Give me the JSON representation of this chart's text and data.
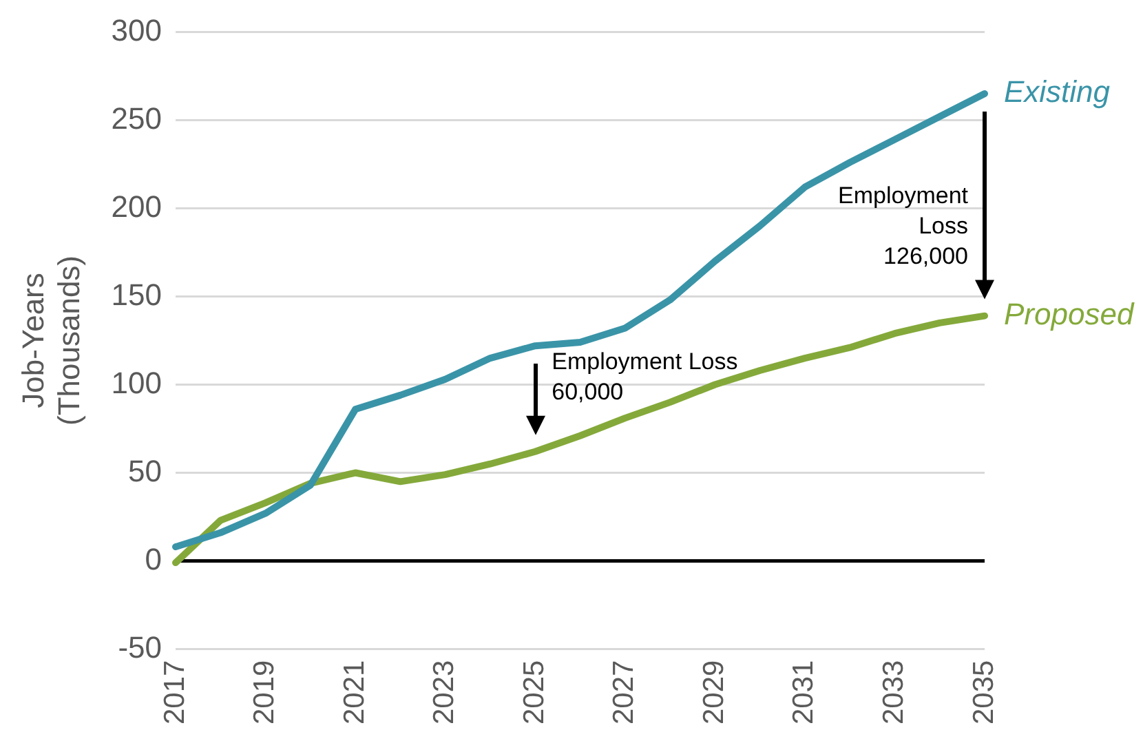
{
  "chart_data": {
    "type": "line",
    "ylabel": "Job-Years\n(Thousands)",
    "categories": [
      "2017",
      null,
      "2019",
      null,
      "2021",
      null,
      "2023",
      null,
      "2025",
      null,
      "2027",
      null,
      "2029",
      null,
      "2031",
      null,
      "2033",
      null,
      "2035"
    ],
    "series": [
      {
        "name": "Existing",
        "color": "#3a94a8",
        "values": [
          8,
          16,
          27,
          43,
          86,
          94,
          103,
          115,
          122,
          124,
          132,
          148,
          170,
          190,
          212,
          226,
          239,
          252,
          265
        ]
      },
      {
        "name": "Proposed",
        "color": "#84a93a",
        "values": [
          -1,
          23,
          33,
          44,
          50,
          45,
          49,
          55,
          62,
          71,
          81,
          90,
          100,
          108,
          115,
          121,
          129,
          135,
          139
        ]
      }
    ],
    "ylim": [
      -50,
      300
    ],
    "yticks": [
      -50,
      0,
      50,
      100,
      150,
      200,
      250,
      300
    ],
    "grid": "y",
    "legend": false,
    "marker": "none",
    "line_style": "solid",
    "ref_lines": [
      {
        "axis": "y",
        "value": 0,
        "color": "#000000"
      }
    ],
    "annotations": [
      "Employment Loss\n60,000",
      "Employment\nLoss\n126,000"
    ]
  }
}
